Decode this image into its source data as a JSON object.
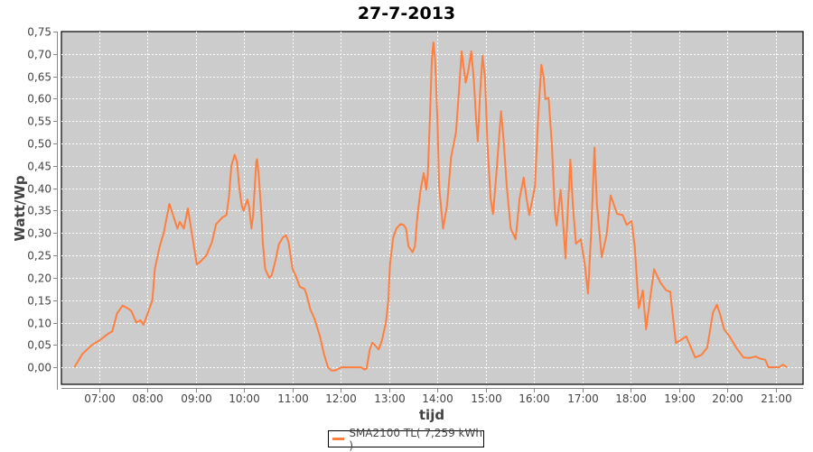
{
  "chart_data": {
    "type": "line",
    "title": "27-7-2013",
    "xlabel": "tijd",
    "ylabel": "Watt/Wp",
    "xlim": [
      "06:13",
      "21:34"
    ],
    "ylim": [
      -0.038,
      0.75
    ],
    "grid": true,
    "legend_placement": "bottom",
    "background_color": "#cccccc",
    "x_ticks": [
      "07:00",
      "08:00",
      "09:00",
      "10:00",
      "11:00",
      "12:00",
      "13:00",
      "14:00",
      "15:00",
      "16:00",
      "17:00",
      "18:00",
      "19:00",
      "20:00",
      "21:00"
    ],
    "y_ticks": [
      0,
      0.05,
      0.1,
      0.15,
      0.2,
      0.25,
      0.3,
      0.35,
      0.4,
      0.45,
      0.5,
      0.55,
      0.6,
      0.65,
      0.7,
      0.75
    ],
    "y_tick_labels": [
      "0,00",
      "0,05",
      "0,10",
      "0,15",
      "0,20",
      "0,25",
      "0,30",
      "0,35",
      "0,40",
      "0,45",
      "0,50",
      "0,55",
      "0,60",
      "0,65",
      "0,70",
      "0,75"
    ],
    "series": [
      {
        "name": "SMA2100 TL( 7,259 kWh )",
        "color": "#ff7f3f",
        "x": [
          "06:29",
          "06:39",
          "06:51",
          "07:00",
          "07:11",
          "07:16",
          "07:22",
          "07:29",
          "07:37",
          "07:40",
          "07:46",
          "07:51",
          "07:55",
          "08:00",
          "08:06",
          "08:09",
          "08:15",
          "08:20",
          "08:27",
          "08:37",
          "08:40",
          "08:45",
          "08:50",
          "09:01",
          "09:05",
          "09:13",
          "09:20",
          "09:25",
          "09:33",
          "09:38",
          "09:41",
          "09:44",
          "09:48",
          "09:51",
          "09:54",
          "09:57",
          "09:59",
          "10:04",
          "10:06",
          "10:09",
          "10:11",
          "10:15",
          "10:16",
          "10:18",
          "10:21",
          "10:23",
          "10:26",
          "10:31",
          "10:34",
          "10:39",
          "10:43",
          "10:48",
          "10:52",
          "10:55",
          "11:00",
          "11:05",
          "11:09",
          "11:15",
          "11:17",
          "11:22",
          "11:27",
          "11:34",
          "11:39",
          "11:44",
          "11:48",
          "11:53",
          "12:01",
          "12:25",
          "12:29",
          "12:32",
          "12:36",
          "12:39",
          "12:42",
          "12:47",
          "12:51",
          "12:56",
          "12:59",
          "13:01",
          "13:05",
          "13:09",
          "13:14",
          "13:18",
          "13:21",
          "13:24",
          "13:29",
          "13:32",
          "13:35",
          "13:39",
          "13:43",
          "13:46",
          "13:48",
          "13:51",
          "13:53",
          "13:55",
          "13:57",
          "14:00",
          "14:02",
          "14:07",
          "14:12",
          "14:17",
          "14:23",
          "14:27",
          "14:30",
          "14:35",
          "14:38",
          "14:42",
          "14:45",
          "14:48",
          "14:50",
          "14:53",
          "14:56",
          "14:59",
          "15:02",
          "15:06",
          "15:09",
          "15:13",
          "15:17",
          "15:19",
          "15:22",
          "15:26",
          "15:31",
          "15:37",
          "15:42",
          "15:47",
          "15:50",
          "15:54",
          "16:01",
          "16:05",
          "16:09",
          "16:12",
          "16:14",
          "16:18",
          "16:22",
          "16:26",
          "16:28",
          "16:33",
          "16:36",
          "16:39",
          "16:42",
          "16:45",
          "16:48",
          "16:52",
          "16:58",
          "17:03",
          "17:07",
          "17:11",
          "17:15",
          "17:18",
          "17:24",
          "17:30",
          "17:35",
          "17:43",
          "17:50",
          "17:55",
          "18:01",
          "18:05",
          "18:10",
          "18:15",
          "18:19",
          "18:24",
          "18:29",
          "18:37",
          "18:44",
          "18:49",
          "18:56",
          "19:09",
          "19:20",
          "19:28",
          "19:35",
          "19:42",
          "19:47",
          "19:51",
          "19:56",
          "20:03",
          "20:11",
          "20:20",
          "20:28",
          "20:35",
          "20:41",
          "20:47",
          "20:51",
          "21:04",
          "21:09",
          "21:14"
        ],
        "y": [
          0.0,
          0.03,
          0.05,
          0.06,
          0.075,
          0.08,
          0.12,
          0.138,
          0.13,
          0.125,
          0.1,
          0.105,
          0.095,
          0.12,
          0.15,
          0.22,
          0.27,
          0.3,
          0.365,
          0.31,
          0.325,
          0.31,
          0.355,
          0.23,
          0.235,
          0.25,
          0.28,
          0.32,
          0.335,
          0.34,
          0.38,
          0.45,
          0.475,
          0.46,
          0.4,
          0.36,
          0.35,
          0.375,
          0.36,
          0.31,
          0.34,
          0.46,
          0.465,
          0.43,
          0.35,
          0.28,
          0.22,
          0.2,
          0.205,
          0.24,
          0.275,
          0.29,
          0.295,
          0.28,
          0.22,
          0.2,
          0.18,
          0.175,
          0.165,
          0.13,
          0.11,
          0.07,
          0.03,
          0.0,
          -0.007,
          -0.007,
          0.0,
          0.0,
          -0.005,
          -0.003,
          0.04,
          0.055,
          0.05,
          0.04,
          0.06,
          0.1,
          0.15,
          0.23,
          0.29,
          0.31,
          0.32,
          0.318,
          0.31,
          0.27,
          0.257,
          0.27,
          0.337,
          0.397,
          0.434,
          0.397,
          0.43,
          0.58,
          0.69,
          0.726,
          0.69,
          0.55,
          0.404,
          0.31,
          0.364,
          0.47,
          0.525,
          0.626,
          0.706,
          0.636,
          0.66,
          0.706,
          0.646,
          0.552,
          0.505,
          0.612,
          0.696,
          0.646,
          0.498,
          0.377,
          0.342,
          0.43,
          0.525,
          0.572,
          0.511,
          0.404,
          0.31,
          0.286,
          0.377,
          0.424,
          0.384,
          0.34,
          0.404,
          0.558,
          0.676,
          0.646,
          0.599,
          0.602,
          0.498,
          0.343,
          0.317,
          0.397,
          0.323,
          0.243,
          0.357,
          0.464,
          0.364,
          0.276,
          0.286,
          0.229,
          0.165,
          0.31,
          0.491,
          0.364,
          0.246,
          0.296,
          0.384,
          0.343,
          0.34,
          0.318,
          0.327,
          0.27,
          0.132,
          0.172,
          0.085,
          0.152,
          0.219,
          0.189,
          0.172,
          0.169,
          0.054,
          0.069,
          0.022,
          0.028,
          0.044,
          0.122,
          0.14,
          0.118,
          0.085,
          0.068,
          0.044,
          0.022,
          0.021,
          0.024,
          0.019,
          0.017,
          0.0,
          0.0,
          0.006,
          0.0
        ]
      }
    ]
  }
}
